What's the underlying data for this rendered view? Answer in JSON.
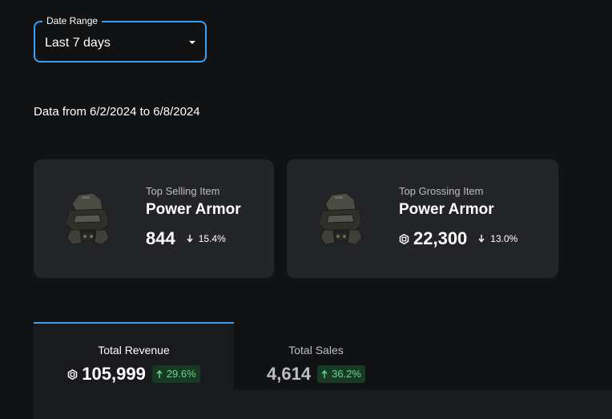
{
  "date_range": {
    "legend": "Date Range",
    "value": "Last 7 days"
  },
  "data_range_text": "Data from 6/2/2024 to 6/8/2024",
  "cards": [
    {
      "label": "Top Selling Item",
      "title": "Power Armor",
      "value": "844",
      "change": "15.4%",
      "change_direction": "down",
      "currency_icon": false
    },
    {
      "label": "Top Grossing Item",
      "title": "Power Armor",
      "value": "22,300",
      "change": "13.0%",
      "change_direction": "down",
      "currency_icon": true
    }
  ],
  "tabs": [
    {
      "label": "Total Revenue",
      "value": "105,999",
      "change": "29.6%",
      "change_direction": "up",
      "active": true,
      "currency_icon": true
    },
    {
      "label": "Total Sales",
      "value": "4,614",
      "change": "36.2%",
      "change_direction": "up",
      "active": false,
      "currency_icon": false
    }
  ],
  "colors": {
    "background": "#111214",
    "card": "#232428",
    "accent": "#3aa0f2",
    "positive_bg": "#163a24",
    "positive_text": "#6bd68a"
  },
  "icons": {
    "dropdown": "caret-down-icon",
    "currency": "robux-icon",
    "decrease": "arrow-down-icon",
    "increase": "arrow-up-icon",
    "item_thumbnail": "power-armor-thumbnail"
  }
}
